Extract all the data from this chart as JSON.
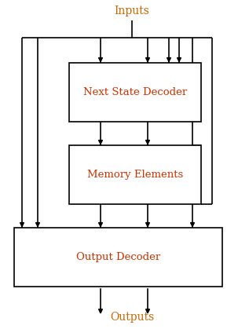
{
  "bg_color": "#ffffff",
  "inputs_label": "Inputs",
  "outputs_label": "Outputs",
  "inputs_label_color": "#cc6600",
  "outputs_label_color": "#cc6600",
  "box_label_color": "#cc3300",
  "box_edge_color": "#000000",
  "nsd_label": "Next State Decoder",
  "mem_label": "Memory Elements",
  "out_label": "Output Decoder",
  "lw": 1.2,
  "arrow_ms": 8,
  "font_size_label": 9.5,
  "font_size_io": 10
}
